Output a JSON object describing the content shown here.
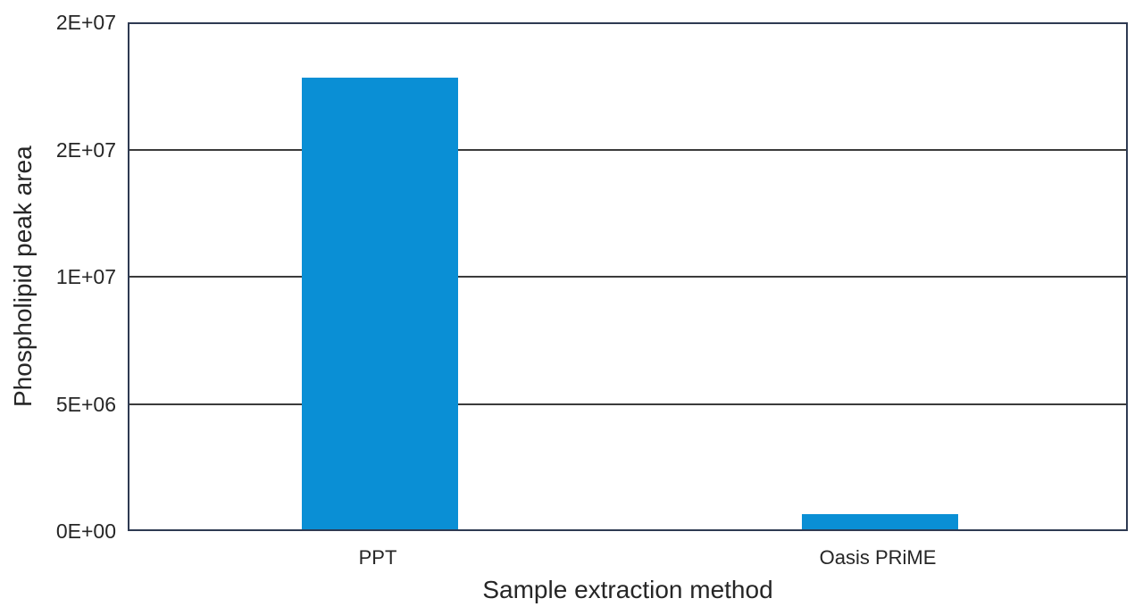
{
  "chart_data": {
    "type": "bar",
    "title": "",
    "xlabel": "Sample extraction method",
    "ylabel": "Phospholipid peak area",
    "categories": [
      "PPT",
      "Oasis PRiME"
    ],
    "values": [
      17750000,
      600000
    ],
    "ylim": [
      0,
      20000000
    ],
    "ytick_interval": 5000000,
    "yticks": [
      {
        "value": 0,
        "label": "0E+00"
      },
      {
        "value": 5000000,
        "label": "5E+06"
      },
      {
        "value": 10000000,
        "label": "1E+07"
      },
      {
        "value": 15000000,
        "label": "2E+07"
      },
      {
        "value": 20000000,
        "label": "2E+07"
      }
    ],
    "grid": true,
    "legend": false,
    "colors": {
      "bar": "#0a8fd5",
      "axis_border": "#2e3a52",
      "gridline": "#3b3b3b",
      "text": "#262626",
      "background": "#ffffff"
    }
  }
}
